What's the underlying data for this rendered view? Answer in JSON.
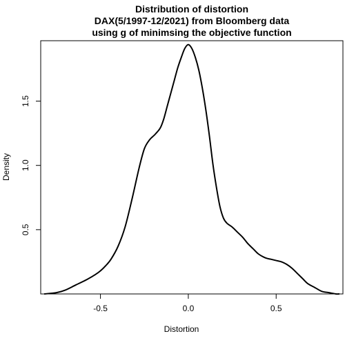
{
  "chart_data": {
    "type": "line",
    "title_lines": [
      "Distribution of distortion",
      "DAX(5/1997-12/2021) from Bloomberg data",
      "using g of minimsing the objective function"
    ],
    "xlabel": "Distortion",
    "ylabel": "Density",
    "xlim": [
      -0.84,
      0.88
    ],
    "ylim": [
      0.0,
      1.97
    ],
    "x_ticks": [
      -0.5,
      0.0,
      0.5
    ],
    "x_tick_labels": [
      "-0.5",
      "0.0",
      "0.5"
    ],
    "y_ticks": [
      0.5,
      1.0,
      1.5
    ],
    "y_tick_labels": [
      "0.5",
      "1.0",
      "1.5"
    ],
    "line_color": "#000000",
    "grid": false,
    "legend": "none",
    "series": [
      {
        "x": [
          -0.82,
          -0.75,
          -0.7,
          -0.64,
          -0.58,
          -0.53,
          -0.5,
          -0.47,
          -0.44,
          -0.4,
          -0.36,
          -0.32,
          -0.28,
          -0.25,
          -0.22,
          -0.19,
          -0.16,
          -0.14,
          -0.12,
          -0.1,
          -0.08,
          -0.06,
          -0.04,
          -0.02,
          0.0,
          0.02,
          0.04,
          0.06,
          0.08,
          0.1,
          0.12,
          0.14,
          0.16,
          0.18,
          0.2,
          0.22,
          0.25,
          0.28,
          0.31,
          0.34,
          0.37,
          0.4,
          0.44,
          0.47,
          0.5,
          0.53,
          0.56,
          0.59,
          0.62,
          0.65,
          0.68,
          0.72,
          0.76,
          0.8,
          0.84,
          0.86
        ],
        "y": [
          0.0,
          0.01,
          0.03,
          0.07,
          0.11,
          0.15,
          0.18,
          0.22,
          0.27,
          0.37,
          0.52,
          0.74,
          0.98,
          1.13,
          1.2,
          1.24,
          1.29,
          1.36,
          1.46,
          1.56,
          1.66,
          1.76,
          1.84,
          1.91,
          1.94,
          1.91,
          1.84,
          1.74,
          1.6,
          1.43,
          1.23,
          1.01,
          0.83,
          0.68,
          0.59,
          0.55,
          0.52,
          0.48,
          0.44,
          0.39,
          0.35,
          0.31,
          0.28,
          0.27,
          0.26,
          0.25,
          0.23,
          0.2,
          0.16,
          0.12,
          0.08,
          0.05,
          0.02,
          0.01,
          0.0,
          0.0
        ]
      }
    ]
  }
}
